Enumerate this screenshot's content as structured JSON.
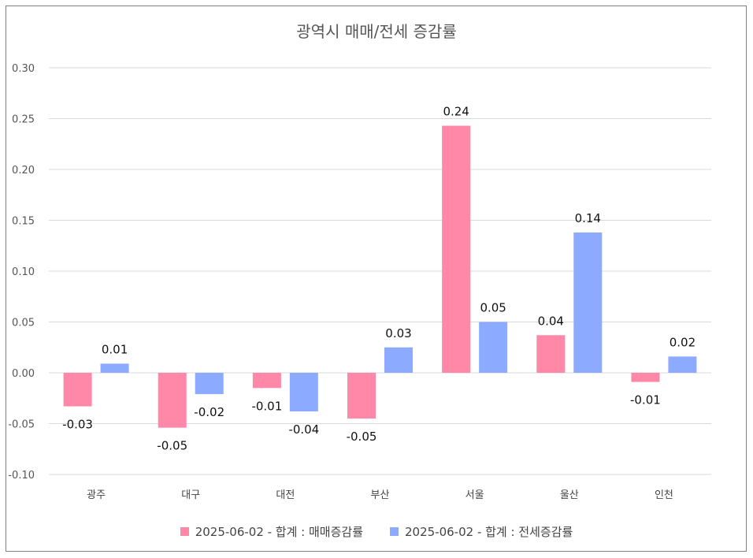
{
  "chart_data": {
    "type": "bar",
    "title": "광역시 매매/전세 증감률",
    "categories": [
      "광주",
      "대구",
      "대전",
      "부산",
      "서울",
      "울산",
      "인천"
    ],
    "series": [
      {
        "name": "2025-06-02 - 합계 : 매매증감률",
        "color": "#FF88A8",
        "values": [
          -0.033,
          -0.054,
          -0.015,
          -0.045,
          0.243,
          0.037,
          -0.009
        ],
        "labels": [
          "-0.03",
          "-0.05",
          "-0.01",
          "-0.05",
          "0.24",
          "0.04",
          "-0.01"
        ]
      },
      {
        "name": "2025-06-02 - 합계 : 전세증감률",
        "color": "#8CAAFF",
        "values": [
          0.009,
          -0.021,
          -0.038,
          0.025,
          0.05,
          0.138,
          0.016
        ],
        "labels": [
          "0.01",
          "-0.02",
          "-0.04",
          "0.03",
          "0.05",
          "0.14",
          "0.02"
        ]
      }
    ],
    "ylim": [
      -0.1,
      0.3
    ],
    "yticks": [
      "-0.10",
      "-0.05",
      "0.00",
      "0.05",
      "0.10",
      "0.15",
      "0.20",
      "0.25",
      "0.30"
    ],
    "ytick_values": [
      -0.1,
      -0.05,
      0,
      0.05,
      0.1,
      0.15,
      0.2,
      0.25,
      0.3
    ],
    "grid": true,
    "legend_position": "bottom"
  }
}
